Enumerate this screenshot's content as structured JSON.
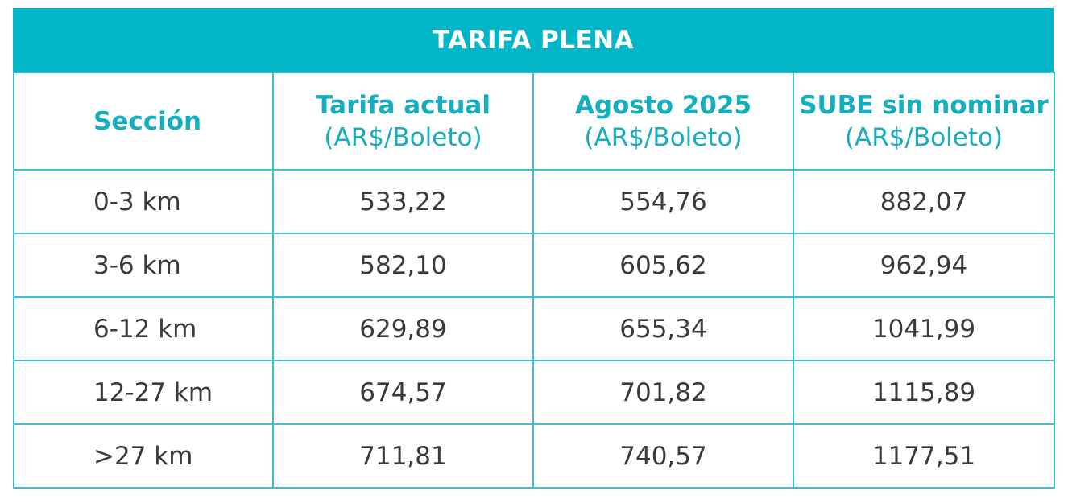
{
  "title": "TARIFA PLENA",
  "headers": {
    "seccion": "Sección",
    "tarifa_actual": "Tarifa actual",
    "agosto_2025": "Agosto 2025",
    "sube_sin_nominar": "SUBE sin nominar",
    "unit": "(AR$/Boleto)"
  },
  "rows": [
    {
      "seccion": "0-3 km",
      "tarifa_actual": "533,22",
      "agosto_2025": "554,76",
      "sube_sin_nominar": "882,07"
    },
    {
      "seccion": "3-6 km",
      "tarifa_actual": "582,10",
      "agosto_2025": "605,62",
      "sube_sin_nominar": "962,94"
    },
    {
      "seccion": "6-12 km",
      "tarifa_actual": "629,89",
      "agosto_2025": "655,34",
      "sube_sin_nominar": "1041,99"
    },
    {
      "seccion": "12-27 km",
      "tarifa_actual": "674,57",
      "agosto_2025": "701,82",
      "sube_sin_nominar": "1115,89"
    },
    {
      "seccion": ">27 km",
      "tarifa_actual": "711,81",
      "agosto_2025": "740,57",
      "sube_sin_nominar": "1177,51"
    }
  ],
  "colors": {
    "accent": "#00b6c8",
    "header_text": "#15aebe",
    "border": "#3bbfcc",
    "body_text": "#3a3a3a"
  }
}
